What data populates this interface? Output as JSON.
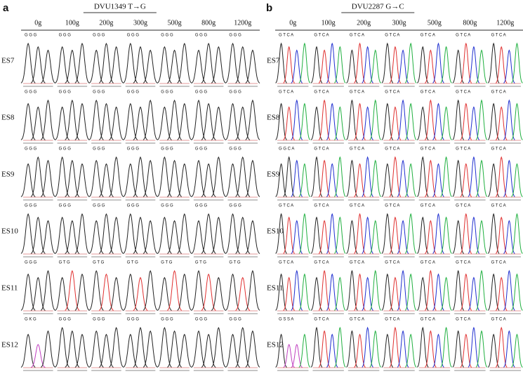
{
  "panels": [
    {
      "label": "a",
      "title": "DVU1349 T→G",
      "columns": [
        "0g",
        "100g",
        "200g",
        "300g",
        "500g",
        "800g",
        "1200g"
      ],
      "rows": [
        {
          "label": "ES7",
          "calls": [
            "G G G",
            "G G G",
            "G G G",
            "G G G",
            "G G G",
            "G G G",
            "G G G"
          ]
        },
        {
          "label": "ES8",
          "calls": [
            "G G G",
            "G G G",
            "G G G",
            "G G G",
            "G G G",
            "G G G",
            "G G G"
          ]
        },
        {
          "label": "ES9",
          "calls": [
            "G G G",
            "G G G",
            "G G G",
            "G G G",
            "G G G",
            "G G G",
            "G G G"
          ]
        },
        {
          "label": "ES10",
          "calls": [
            "G G G",
            "G G G",
            "G G G",
            "G G G",
            "G G G",
            "G G G",
            "G G G"
          ]
        },
        {
          "label": "ES11",
          "calls": [
            "G G G",
            "G T G",
            "G T G",
            "G T G",
            "G T G",
            "G T G",
            "G T G"
          ]
        },
        {
          "label": "ES12",
          "calls": [
            "G K G",
            "G G G",
            "G G G",
            "G G G",
            "G G G",
            "G G G",
            "G G G"
          ]
        }
      ]
    },
    {
      "label": "b",
      "title": "DVU2287 G→C",
      "columns": [
        "0g",
        "100g",
        "200g",
        "300g",
        "500g",
        "800g",
        "1200g"
      ],
      "rows": [
        {
          "label": "ES7",
          "calls": [
            "G T C A",
            "G T C A",
            "G T C A",
            "G T C A",
            "G T C A",
            "G T C A",
            "G T C A"
          ]
        },
        {
          "label": "ES8",
          "calls": [
            "G T C A",
            "G T C A",
            "G T C A",
            "G T C A",
            "G T C A",
            "G T C A",
            "G T C A"
          ]
        },
        {
          "label": "ES9",
          "calls": [
            "G G C A",
            "G T C A",
            "G T C A",
            "G T C A",
            "G T C A",
            "G T C A",
            "G T C A"
          ]
        },
        {
          "label": "ES10",
          "calls": [
            "G T C A",
            "G T C A",
            "G T C A",
            "G T C A",
            "G T C A",
            "G T C A",
            "G T C A"
          ]
        },
        {
          "label": "ES11",
          "calls": [
            "G T C A",
            "G T C A",
            "G T C A",
            "G T C A",
            "G T C A",
            "G T C A",
            "G T C A"
          ]
        },
        {
          "label": "ES12",
          "calls": [
            "G S S A",
            "G T C A",
            "G T C A",
            "G T C A",
            "G T C A",
            "G T C A",
            "G T C A"
          ]
        }
      ]
    }
  ]
}
